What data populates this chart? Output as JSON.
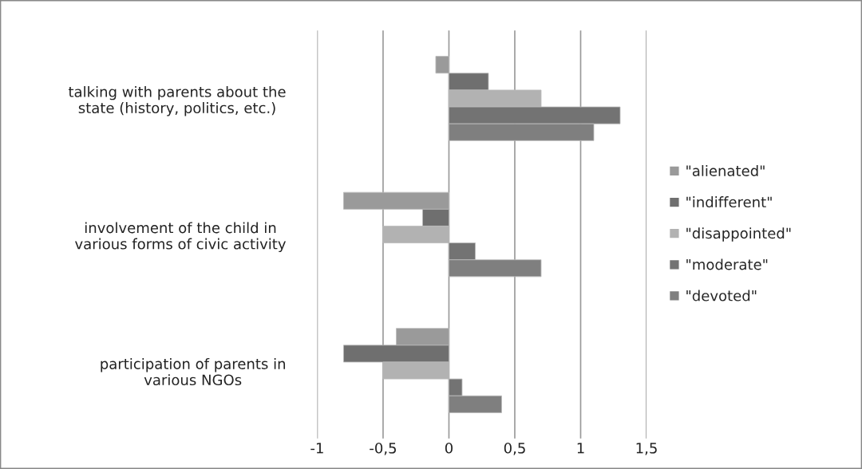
{
  "chart_data": {
    "type": "bar",
    "orientation": "horizontal",
    "categories": [
      "talking with parents about the\nstate (history, politics, etc.)",
      "involvement of the child in\nvarious forms of civic activity",
      "participation of parents in\nvarious NGOs"
    ],
    "series": [
      {
        "name": "\"alienated\"",
        "color": "#9a9a9a",
        "values": [
          -0.1,
          -0.8,
          -0.4
        ]
      },
      {
        "name": "\"indifferent\"",
        "color": "#6f6f6f",
        "values": [
          0.3,
          -0.2,
          -0.8
        ]
      },
      {
        "name": "\"disappointed\"",
        "color": "#b2b2b2",
        "values": [
          0.7,
          -0.5,
          -0.5
        ]
      },
      {
        "name": "\"moderate\"",
        "color": "#737373",
        "values": [
          1.3,
          0.2,
          0.1
        ]
      },
      {
        "name": "\"devoted\"",
        "color": "#7f7f7f",
        "values": [
          1.1,
          0.7,
          0.4
        ]
      }
    ],
    "xlim": [
      -1,
      1.5
    ],
    "xticks": [
      -1,
      {
        "value": -0.5,
        "label": "-0,5"
      },
      0,
      {
        "value": 0.5,
        "label": "0,5"
      },
      1,
      {
        "value": 1.5,
        "label": "1,5"
      }
    ],
    "grid": "x",
    "legend": "right"
  }
}
